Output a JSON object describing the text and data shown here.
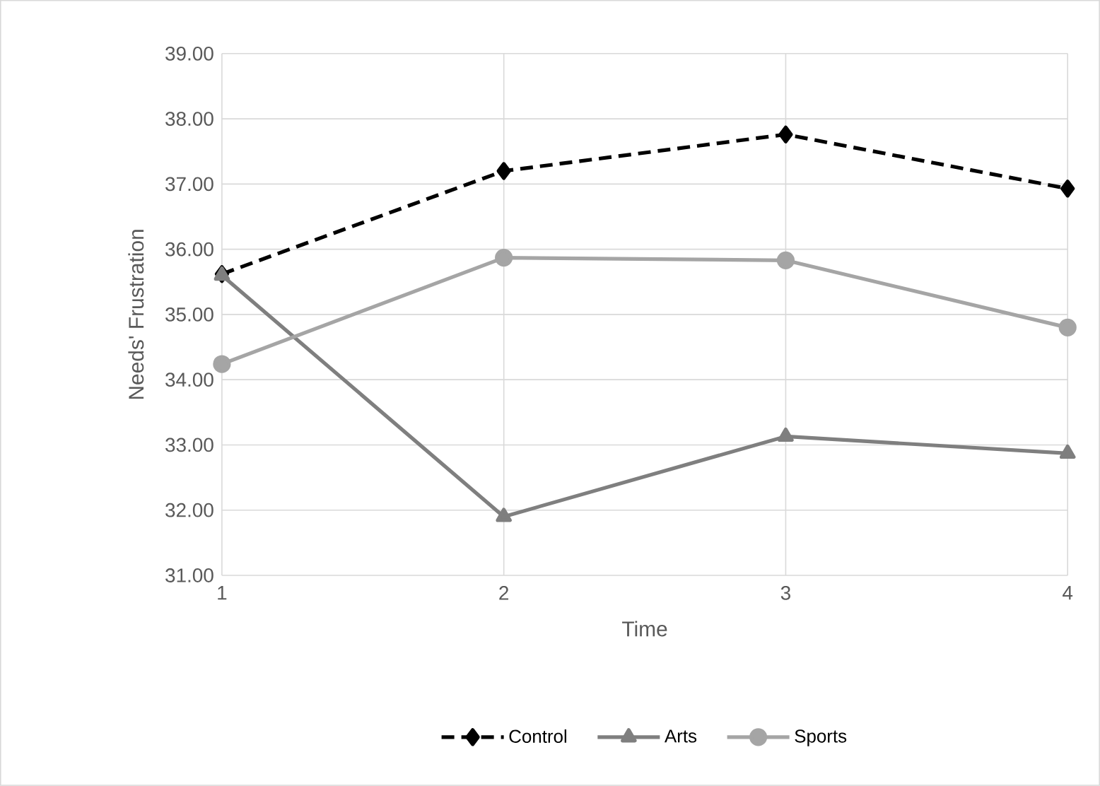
{
  "chart_data": {
    "type": "line",
    "xlabel": "Time",
    "ylabel": "Needs' Frustration",
    "x": [
      1,
      2,
      3,
      4
    ],
    "series": [
      {
        "name": "Control",
        "color": "#000000",
        "values": [
          35.62,
          37.2,
          37.76,
          36.93
        ],
        "marker": "diamond",
        "line_style": "dashed"
      },
      {
        "name": "Arts",
        "color": "#7f7f7f",
        "values": [
          35.6,
          31.9,
          33.13,
          32.87
        ],
        "marker": "triangle",
        "line_style": "solid"
      },
      {
        "name": "Sports",
        "color": "#a5a5a5",
        "values": [
          34.24,
          35.87,
          35.83,
          34.8
        ],
        "marker": "circle",
        "line_style": "solid"
      }
    ],
    "xlim": [
      1,
      4
    ],
    "xticks": [
      1,
      2,
      3,
      4
    ],
    "ylim": [
      31,
      39
    ],
    "yticks": [
      {
        "value": 31,
        "label": "31.00"
      },
      {
        "value": 32,
        "label": "32.00"
      },
      {
        "value": 33,
        "label": "33.00"
      },
      {
        "value": 34,
        "label": "34.00"
      },
      {
        "value": 35,
        "label": "35.00"
      },
      {
        "value": 36,
        "label": "36.00"
      },
      {
        "value": 37,
        "label": "37.00"
      },
      {
        "value": 38,
        "label": "38.00"
      },
      {
        "value": 39,
        "label": "39.00"
      }
    ],
    "grid": true,
    "legend": "bottom"
  }
}
